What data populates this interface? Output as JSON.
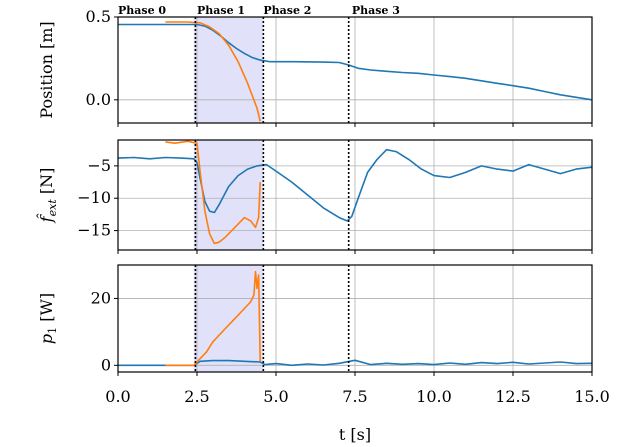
{
  "chart_data": {
    "type": "line",
    "xlabel": "t [s]",
    "xlim": [
      0.0,
      15.0
    ],
    "x_ticks": [
      "0.0",
      "2.5",
      "5.0",
      "7.5",
      "10.0",
      "12.5",
      "15.0"
    ],
    "grid": true,
    "colors": {
      "series1": "#1f77b4",
      "series2": "#ff7f0e",
      "phase_shade": "#dcdcf8"
    },
    "phases": {
      "labels": [
        "Phase 0",
        "Phase 1",
        "Phase 2",
        "Phase 3"
      ],
      "boundaries": [
        2.45,
        4.6,
        7.3
      ],
      "label_x": [
        0.0,
        2.5,
        4.6,
        7.4
      ],
      "shade_range": [
        2.4,
        4.6
      ]
    },
    "panels": [
      {
        "ylabel": "Position [m]",
        "ylim": [
          -0.14,
          0.5
        ],
        "y_ticks": [
          0.0,
          0.5
        ],
        "y_tick_labels": [
          "0.0",
          "0.5"
        ],
        "series": [
          {
            "points": [
              [
                0,
                0.455
              ],
              [
                1,
                0.455
              ],
              [
                2,
                0.455
              ],
              [
                2.5,
                0.455
              ],
              [
                2.75,
                0.445
              ],
              [
                3,
                0.42
              ],
              [
                3.25,
                0.385
              ],
              [
                3.5,
                0.345
              ],
              [
                3.75,
                0.31
              ],
              [
                4,
                0.28
              ],
              [
                4.25,
                0.255
              ],
              [
                4.5,
                0.24
              ],
              [
                4.8,
                0.23
              ],
              [
                5.5,
                0.23
              ],
              [
                6.5,
                0.228
              ],
              [
                7.0,
                0.225
              ],
              [
                7.3,
                0.21
              ],
              [
                7.6,
                0.19
              ],
              [
                8,
                0.18
              ],
              [
                8.5,
                0.172
              ],
              [
                9,
                0.165
              ],
              [
                9.5,
                0.16
              ],
              [
                10,
                0.15
              ],
              [
                10.5,
                0.14
              ],
              [
                11,
                0.13
              ],
              [
                11.5,
                0.115
              ],
              [
                12,
                0.1
              ],
              [
                12.5,
                0.085
              ],
              [
                13,
                0.07
              ],
              [
                13.5,
                0.05
              ],
              [
                14,
                0.03
              ],
              [
                14.5,
                0.015
              ],
              [
                15,
                0.0
              ]
            ]
          },
          {
            "points": [
              [
                1.5,
                0.47
              ],
              [
                2.2,
                0.47
              ],
              [
                2.6,
                0.465
              ],
              [
                2.9,
                0.44
              ],
              [
                3.2,
                0.4
              ],
              [
                3.5,
                0.33
              ],
              [
                3.8,
                0.23
              ],
              [
                4.1,
                0.1
              ],
              [
                4.4,
                -0.05
              ],
              [
                4.5,
                -0.13
              ]
            ]
          }
        ]
      },
      {
        "ylabel": "f_ext [N]",
        "ylim": [
          -18,
          -1
        ],
        "y_ticks": [
          -15,
          -10,
          -5
        ],
        "y_tick_labels": [
          "−15",
          "−10",
          "−5"
        ],
        "series": [
          {
            "points": [
              [
                0,
                -3.8
              ],
              [
                0.5,
                -3.7
              ],
              [
                1,
                -3.9
              ],
              [
                1.5,
                -3.7
              ],
              [
                2,
                -3.8
              ],
              [
                2.4,
                -3.9
              ],
              [
                2.5,
                -4.5
              ],
              [
                2.6,
                -7
              ],
              [
                2.75,
                -10.5
              ],
              [
                2.9,
                -12
              ],
              [
                3.05,
                -12.2
              ],
              [
                3.2,
                -11
              ],
              [
                3.5,
                -8.2
              ],
              [
                3.8,
                -6.5
              ],
              [
                4.1,
                -5.5
              ],
              [
                4.4,
                -5
              ],
              [
                4.7,
                -4.8
              ],
              [
                5,
                -5.8
              ],
              [
                5.5,
                -7.5
              ],
              [
                6,
                -9.5
              ],
              [
                6.5,
                -11.5
              ],
              [
                7,
                -13
              ],
              [
                7.25,
                -13.5
              ],
              [
                7.4,
                -12.8
              ],
              [
                7.6,
                -10
              ],
              [
                7.9,
                -6
              ],
              [
                8.2,
                -4
              ],
              [
                8.5,
                -2.5
              ],
              [
                8.8,
                -2.8
              ],
              [
                9.2,
                -4
              ],
              [
                9.6,
                -5.5
              ],
              [
                10,
                -6.5
              ],
              [
                10.5,
                -6.8
              ],
              [
                11,
                -6
              ],
              [
                11.5,
                -5
              ],
              [
                12,
                -5.5
              ],
              [
                12.5,
                -5.8
              ],
              [
                13,
                -4.8
              ],
              [
                13.5,
                -5.5
              ],
              [
                14,
                -6.2
              ],
              [
                14.5,
                -5.5
              ],
              [
                15,
                -5.2
              ]
            ]
          },
          {
            "points": [
              [
                1.5,
                -1.3
              ],
              [
                1.8,
                -1.5
              ],
              [
                2.2,
                -1.2
              ],
              [
                2.5,
                -1.5
              ],
              [
                2.6,
                -6
              ],
              [
                2.75,
                -12
              ],
              [
                2.9,
                -15.5
              ],
              [
                3.05,
                -17
              ],
              [
                3.2,
                -16.8
              ],
              [
                3.4,
                -16
              ],
              [
                3.6,
                -15
              ],
              [
                3.8,
                -14
              ],
              [
                4,
                -13
              ],
              [
                4.2,
                -13.5
              ],
              [
                4.35,
                -14.5
              ],
              [
                4.45,
                -13
              ],
              [
                4.5,
                -7.5
              ]
            ]
          }
        ]
      },
      {
        "ylabel": "p_1 [W]",
        "ylim": [
          -2,
          30
        ],
        "y_ticks": [
          0,
          20
        ],
        "y_tick_labels": [
          "0",
          "20"
        ],
        "series": [
          {
            "points": [
              [
                0,
                0
              ],
              [
                1,
                0
              ],
              [
                2,
                0
              ],
              [
                2.4,
                0
              ],
              [
                2.6,
                1.2
              ],
              [
                3,
                1.4
              ],
              [
                3.5,
                1.4
              ],
              [
                4,
                1.2
              ],
              [
                4.5,
                1
              ],
              [
                4.65,
                0.2
              ],
              [
                5,
                0.5
              ],
              [
                5.5,
                0
              ],
              [
                6,
                0.4
              ],
              [
                6.5,
                0.1
              ],
              [
                7,
                0.6
              ],
              [
                7.5,
                1.5
              ],
              [
                8,
                0.2
              ],
              [
                8.5,
                0.6
              ],
              [
                9,
                0.3
              ],
              [
                9.5,
                0.5
              ],
              [
                10,
                0.2
              ],
              [
                10.5,
                0.7
              ],
              [
                11,
                0.3
              ],
              [
                11.5,
                0.8
              ],
              [
                12,
                0.5
              ],
              [
                12.5,
                0.9
              ],
              [
                13,
                0.4
              ],
              [
                13.5,
                0.7
              ],
              [
                14,
                1
              ],
              [
                14.5,
                0.5
              ],
              [
                15,
                0.6
              ]
            ]
          },
          {
            "points": [
              [
                1.5,
                0
              ],
              [
                2.4,
                0
              ],
              [
                2.6,
                2
              ],
              [
                2.8,
                4
              ],
              [
                3,
                7
              ],
              [
                3.2,
                9
              ],
              [
                3.4,
                11
              ],
              [
                3.6,
                13
              ],
              [
                3.8,
                15
              ],
              [
                4,
                17
              ],
              [
                4.2,
                19
              ],
              [
                4.3,
                21
              ],
              [
                4.35,
                28
              ],
              [
                4.4,
                23
              ],
              [
                4.45,
                27
              ],
              [
                4.5,
                1.2
              ]
            ]
          }
        ]
      }
    ]
  }
}
